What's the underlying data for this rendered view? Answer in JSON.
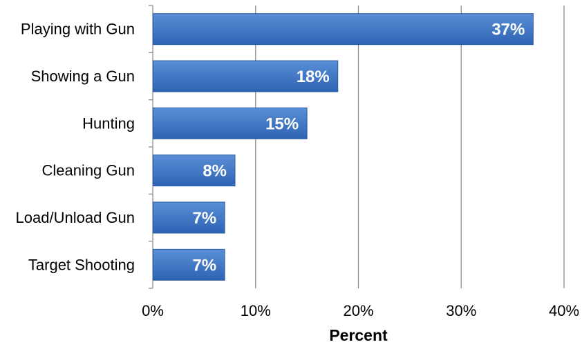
{
  "chart_data": {
    "type": "bar",
    "orientation": "horizontal",
    "categories": [
      "Playing with Gun",
      "Showing a Gun",
      "Hunting",
      "Cleaning Gun",
      "Load/Unload Gun",
      "Target Shooting"
    ],
    "values": [
      37,
      18,
      15,
      8,
      7,
      7
    ],
    "data_labels": [
      "37%",
      "18%",
      "15%",
      "8%",
      "7%",
      "7%"
    ],
    "title": "",
    "xlabel": "Percent",
    "ylabel": "",
    "xlim": [
      0,
      40
    ],
    "x_ticks": [
      0,
      10,
      20,
      30,
      40
    ],
    "x_tick_labels": [
      "0%",
      "10%",
      "20%",
      "30%",
      "40%"
    ],
    "grid": "vertical",
    "legend": "none",
    "colors": {
      "bar_top": "#5a8fd6",
      "bar_bottom": "#2d63b3",
      "bar_edge": "#2a5ca6",
      "grid": "#8c8c8c"
    }
  }
}
